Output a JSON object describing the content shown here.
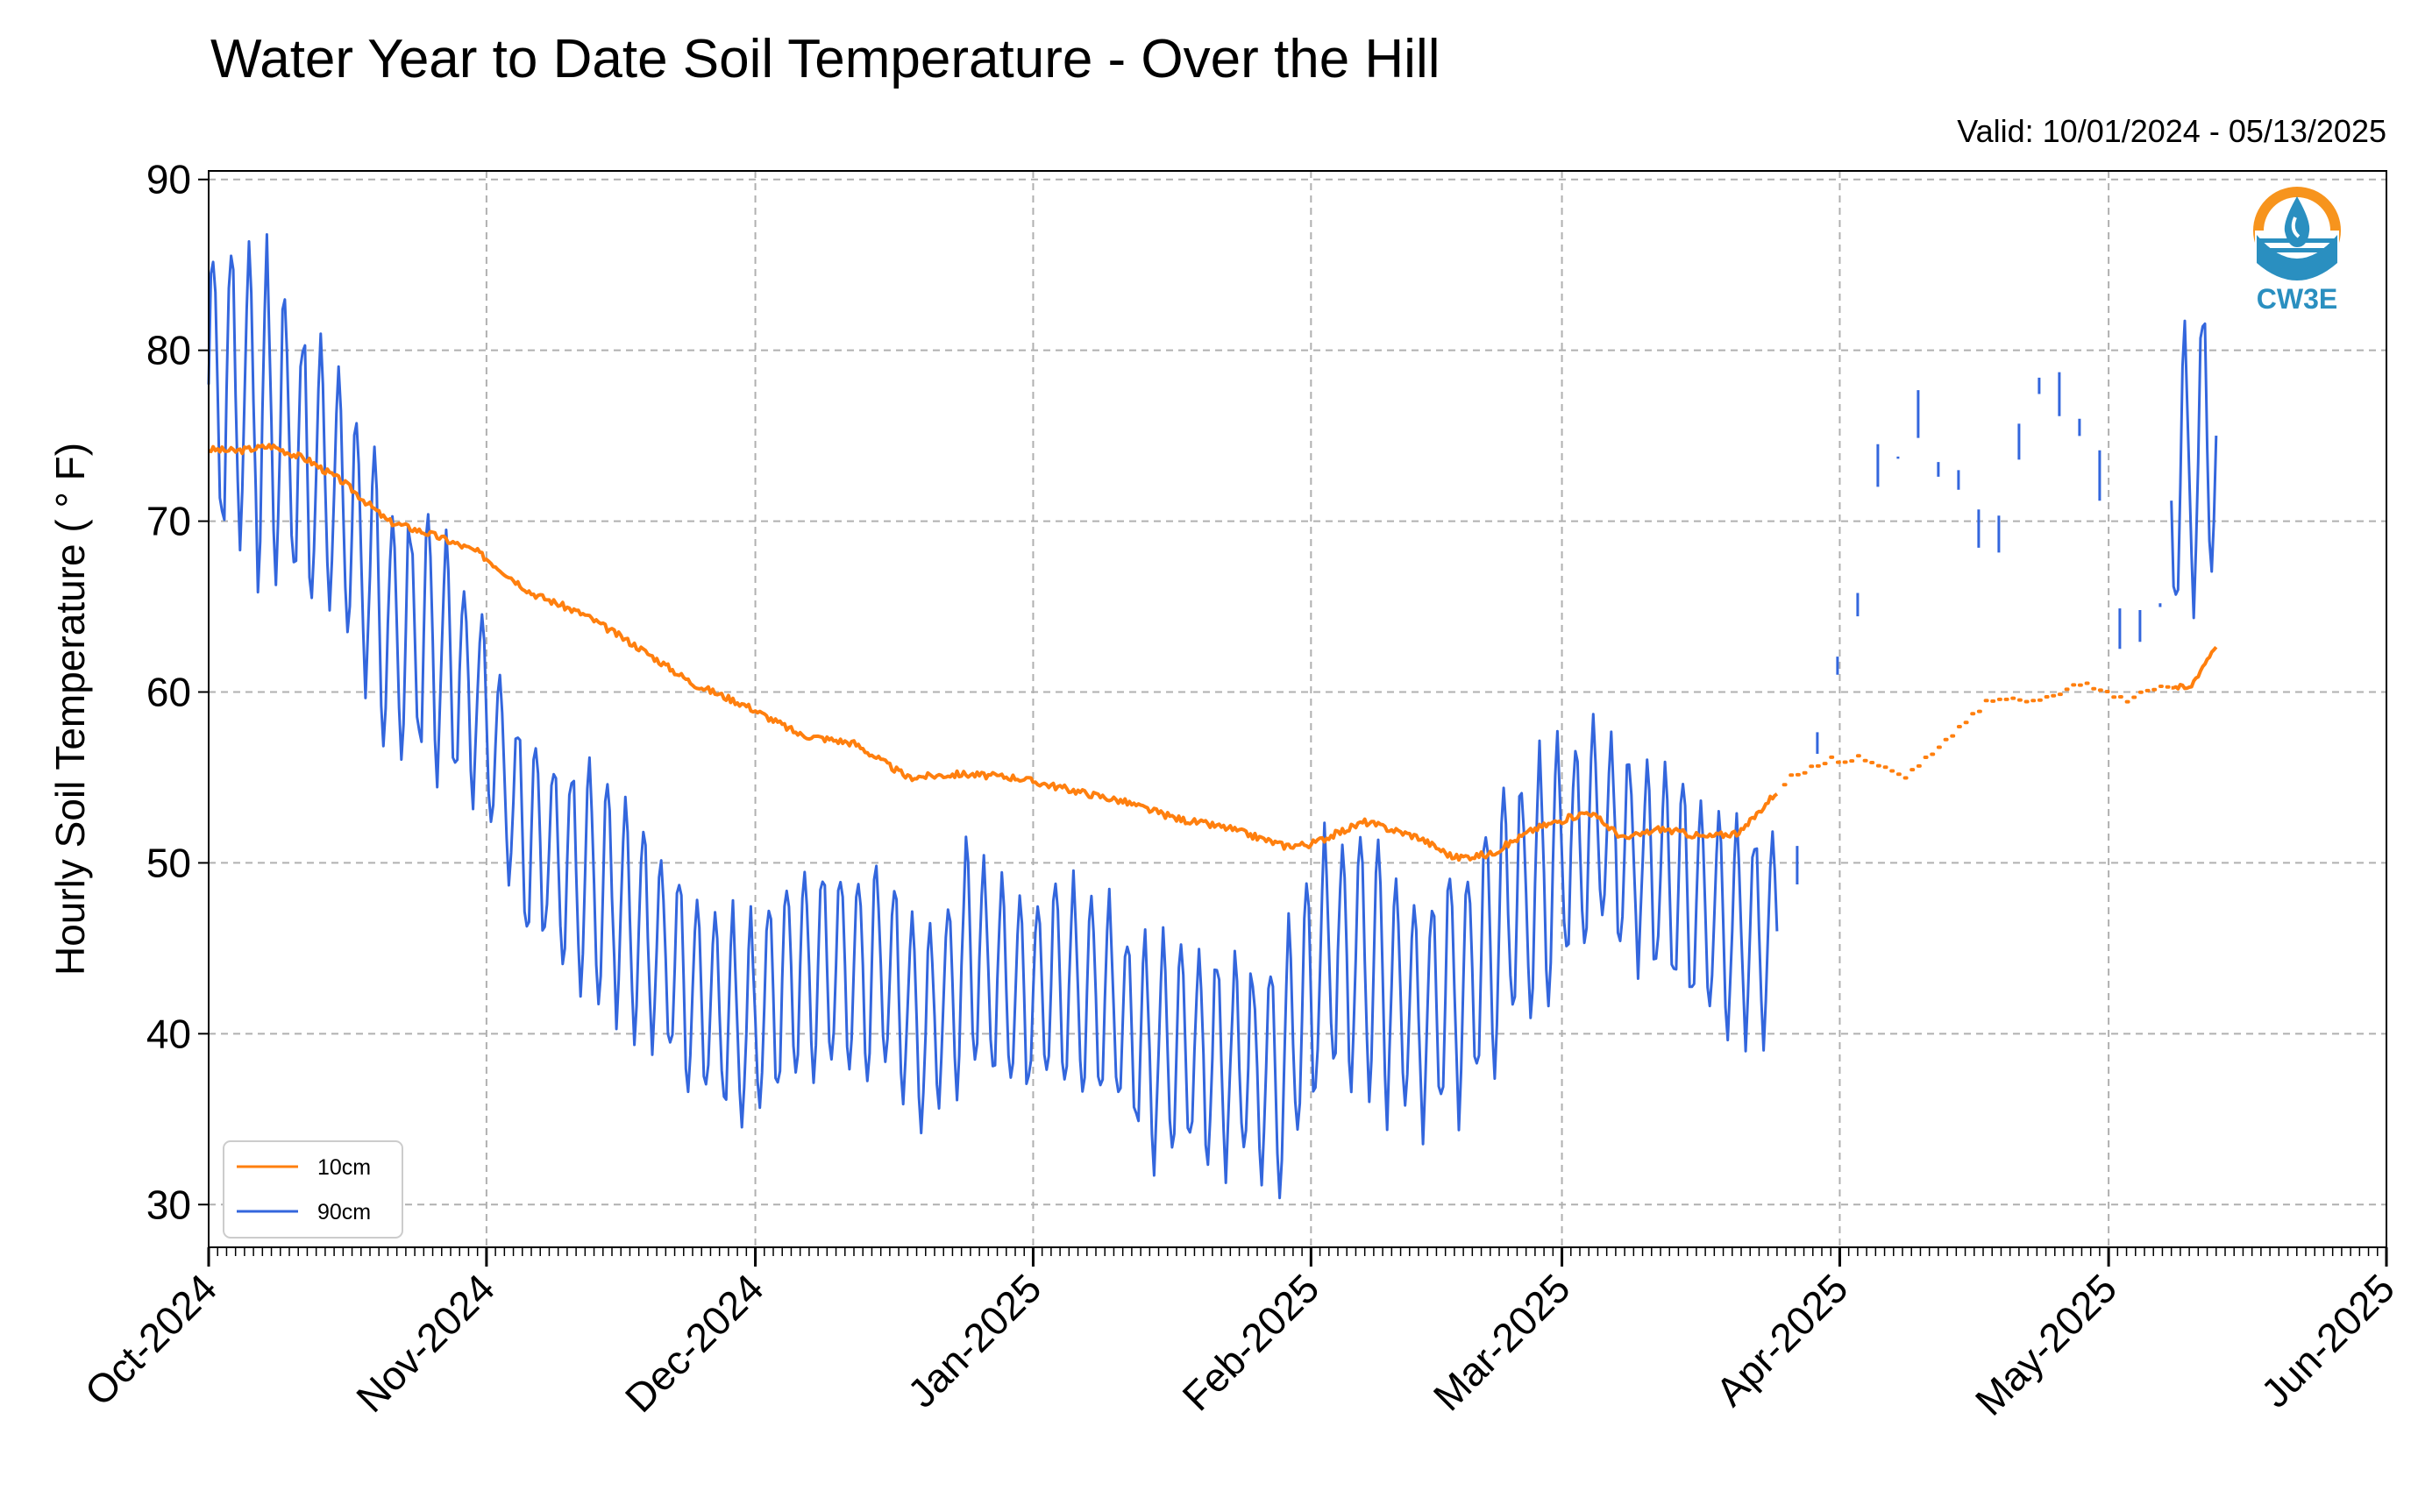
{
  "chart_data": {
    "type": "line",
    "title": "Water Year to Date Soil Temperature - Over the Hill",
    "subtitle": "Valid: 10/01/2024 - 05/13/2025",
    "xlabel": "",
    "ylabel": "Hourly Soil Temperature ( ° F)",
    "xlim": [
      "2024-10-01",
      "2025-06-01"
    ],
    "ylim": [
      27.5,
      90.5
    ],
    "yticks": [
      30,
      40,
      50,
      60,
      70,
      80,
      90
    ],
    "xticks": [
      {
        "date": "2024-10-01",
        "label": "Oct-2024"
      },
      {
        "date": "2024-11-01",
        "label": "Nov-2024"
      },
      {
        "date": "2024-12-01",
        "label": "Dec-2024"
      },
      {
        "date": "2025-01-01",
        "label": "Jan-2025"
      },
      {
        "date": "2025-02-01",
        "label": "Feb-2025"
      },
      {
        "date": "2025-03-01",
        "label": "Mar-2025"
      },
      {
        "date": "2025-04-01",
        "label": "Apr-2025"
      },
      {
        "date": "2025-05-01",
        "label": "May-2025"
      },
      {
        "date": "2025-06-01",
        "label": "Jun-2025"
      }
    ],
    "grid": true,
    "legend_position": "bottom-left",
    "series": [
      {
        "name": "10cm",
        "color": "#ff7f0e",
        "dates": [
          "2024-10-01",
          "2024-10-04",
          "2024-10-08",
          "2024-10-12",
          "2024-10-16",
          "2024-10-21",
          "2024-10-26",
          "2024-10-31",
          "2024-11-06",
          "2024-11-12",
          "2024-11-18",
          "2024-11-24",
          "2024-11-30",
          "2024-12-06",
          "2024-12-12",
          "2024-12-18",
          "2024-12-24",
          "2024-12-30",
          "2025-01-05",
          "2025-01-11",
          "2025-01-17",
          "2025-01-23",
          "2025-01-29",
          "2025-02-01",
          "2025-02-07",
          "2025-02-13",
          "2025-02-17",
          "2025-02-21",
          "2025-02-26",
          "2025-03-04",
          "2025-03-08",
          "2025-03-12",
          "2025-03-17",
          "2025-03-21",
          "2025-03-26",
          "2025-03-30",
          "2025-04-03",
          "2025-04-08",
          "2025-04-12",
          "2025-04-17",
          "2025-04-23",
          "2025-04-28",
          "2025-05-03",
          "2025-05-07",
          "2025-05-10",
          "2025-05-13"
        ],
        "values": [
          74.2,
          74.1,
          74.4,
          73.6,
          72.3,
          70.0,
          69.2,
          68.2,
          65.8,
          64.5,
          62.6,
          60.5,
          59.2,
          57.5,
          57.0,
          55.0,
          55.2,
          55.0,
          54.3,
          53.6,
          52.6,
          52.0,
          51.0,
          51.1,
          52.4,
          51.5,
          50.3,
          50.5,
          52.0,
          53.0,
          51.4,
          52.0,
          51.5,
          51.8,
          54.8,
          56.0,
          56.1,
          55.0,
          56.8,
          59.3,
          59.6,
          60.5,
          59.6,
          60.4,
          60.2,
          62.8
        ]
      },
      {
        "name": "90cm",
        "color": "#3366dd",
        "dates": [
          "2024-10-01",
          "2024-10-06",
          "2024-10-11",
          "2024-10-16",
          "2024-10-21",
          "2024-10-26",
          "2024-10-31",
          "2024-11-05",
          "2024-11-10",
          "2024-11-15",
          "2024-11-20",
          "2024-11-25",
          "2024-11-30",
          "2024-12-05",
          "2024-12-10",
          "2024-12-15",
          "2024-12-20",
          "2024-12-25",
          "2024-12-30",
          "2025-01-04",
          "2025-01-09",
          "2025-01-14",
          "2025-01-19",
          "2025-01-24",
          "2025-01-29",
          "2025-02-03",
          "2025-02-08",
          "2025-02-13",
          "2025-02-18",
          "2025-02-23",
          "2025-02-28",
          "2025-03-05",
          "2025-03-10",
          "2025-03-15",
          "2025-03-20",
          "2025-03-25",
          "2025-03-30",
          "2025-04-04",
          "2025-04-09",
          "2025-04-14",
          "2025-04-19",
          "2025-04-24",
          "2025-04-29",
          "2025-05-04",
          "2025-05-09",
          "2025-05-13"
        ],
        "amplitude": [
          9,
          9,
          8,
          7,
          7,
          7,
          6,
          6,
          6,
          6,
          6,
          6,
          6,
          6,
          6,
          6,
          6,
          6,
          6,
          6,
          6,
          6,
          6,
          6,
          7,
          7,
          7,
          7,
          7,
          7,
          7,
          6,
          6,
          6,
          6,
          6,
          6,
          6,
          6,
          5,
          5,
          5,
          5,
          6,
          8,
          9
        ],
        "values": [
          78,
          77,
          74,
          71,
          64,
          63,
          60,
          52,
          50,
          48,
          45,
          42,
          40,
          44,
          44,
          44,
          40,
          45,
          42,
          43,
          42,
          39,
          39,
          38,
          38,
          45,
          44,
          41,
          43,
          47,
          50,
          52,
          50,
          48,
          46,
          46,
          65,
          66,
          69,
          75,
          74,
          73,
          72,
          68,
          72,
          75
        ]
      }
    ]
  },
  "logo": {
    "text": "CW3E",
    "color": "#2a8fc0",
    "accent": "#f7941d",
    "icon": "water-drop-sun-icon"
  }
}
